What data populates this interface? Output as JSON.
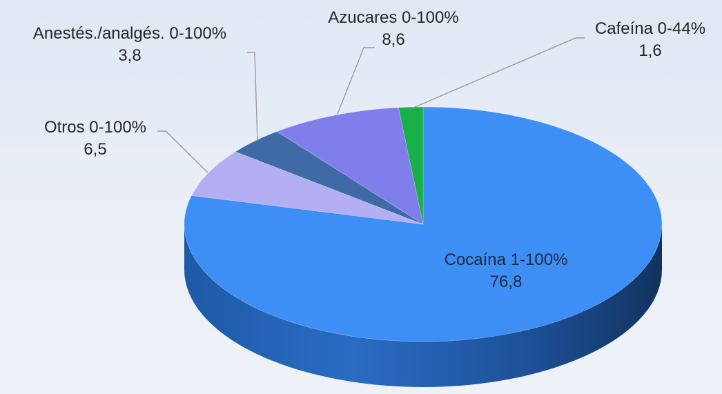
{
  "chart_data": {
    "type": "pie",
    "style": "3d",
    "slices": [
      {
        "name": "Cocaína 1-100%",
        "value": 76.8,
        "value_label": "76,8",
        "color": "#3d8ef5"
      },
      {
        "name": "Otros 0-100%",
        "value": 6.5,
        "value_label": "6,5",
        "color": "#b4aef2"
      },
      {
        "name": "Anestés./analgés. 0-100%",
        "value": 3.8,
        "value_label": "3,8",
        "color": "#3f6aa6"
      },
      {
        "name": "Azucares 0-100%",
        "value": 8.6,
        "value_label": "8,6",
        "color": "#7f7eeb"
      },
      {
        "name": "Cafeína 0-44%",
        "value": 1.6,
        "value_label": "1,6",
        "color": "#19b04a"
      }
    ]
  }
}
